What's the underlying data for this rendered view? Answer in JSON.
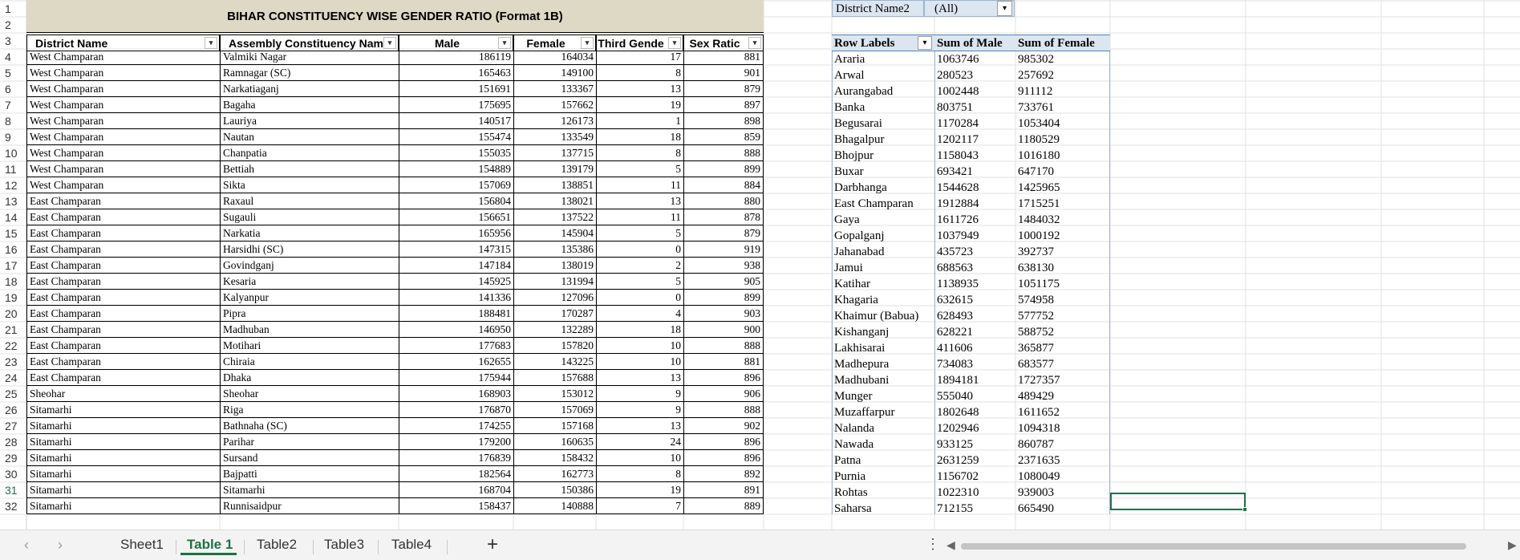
{
  "title": "BIHAR CONSTITUENCY WISE GENDER RATIO (Format 1B)",
  "headers": [
    "District Name",
    "Assembly Constituency Nam",
    "Male",
    "Female",
    "Third Gende",
    "Sex Ratic"
  ],
  "rows": [
    [
      "West Champaran",
      "Valmiki Nagar",
      "186119",
      "164034",
      "17",
      "881"
    ],
    [
      "West Champaran",
      "Ramnagar (SC)",
      "165463",
      "149100",
      "8",
      "901"
    ],
    [
      "West Champaran",
      "Narkatiaganj",
      "151691",
      "133367",
      "13",
      "879"
    ],
    [
      "West Champaran",
      "Bagaha",
      "175695",
      "157662",
      "19",
      "897"
    ],
    [
      "West Champaran",
      "Lauriya",
      "140517",
      "126173",
      "1",
      "898"
    ],
    [
      "West Champaran",
      "Nautan",
      "155474",
      "133549",
      "18",
      "859"
    ],
    [
      "West Champaran",
      "Chanpatia",
      "155035",
      "137715",
      "8",
      "888"
    ],
    [
      "West Champaran",
      "Bettiah",
      "154889",
      "139179",
      "5",
      "899"
    ],
    [
      "West Champaran",
      "Sikta",
      "157069",
      "138851",
      "11",
      "884"
    ],
    [
      "East Champaran",
      "Raxaul",
      "156804",
      "138021",
      "13",
      "880"
    ],
    [
      "East Champaran",
      "Sugauli",
      "156651",
      "137522",
      "11",
      "878"
    ],
    [
      "East Champaran",
      "Narkatia",
      "165956",
      "145904",
      "5",
      "879"
    ],
    [
      "East Champaran",
      "Harsidhi (SC)",
      "147315",
      "135386",
      "0",
      "919"
    ],
    [
      "East Champaran",
      "Govindganj",
      "147184",
      "138019",
      "2",
      "938"
    ],
    [
      "East Champaran",
      "Kesaria",
      "145925",
      "131994",
      "5",
      "905"
    ],
    [
      "East Champaran",
      "Kalyanpur",
      "141336",
      "127096",
      "0",
      "899"
    ],
    [
      "East Champaran",
      "Pipra",
      "188481",
      "170287",
      "4",
      "903"
    ],
    [
      "East Champaran",
      "Madhuban",
      "146950",
      "132289",
      "18",
      "900"
    ],
    [
      "East Champaran",
      "Motihari",
      "177683",
      "157820",
      "10",
      "888"
    ],
    [
      "East Champaran",
      "Chiraia",
      "162655",
      "143225",
      "10",
      "881"
    ],
    [
      "East Champaran",
      "Dhaka",
      "175944",
      "157688",
      "13",
      "896"
    ],
    [
      "Sheohar",
      "Sheohar",
      "168903",
      "153012",
      "9",
      "906"
    ],
    [
      "Sitamarhi",
      "Riga",
      "176870",
      "157069",
      "9",
      "888"
    ],
    [
      "Sitamarhi",
      "Bathnaha (SC)",
      "174255",
      "157168",
      "13",
      "902"
    ],
    [
      "Sitamarhi",
      "Parihar",
      "179200",
      "160635",
      "24",
      "896"
    ],
    [
      "Sitamarhi",
      "Sursand",
      "176839",
      "158432",
      "10",
      "896"
    ],
    [
      "Sitamarhi",
      "Bajpatti",
      "182564",
      "162773",
      "8",
      "892"
    ],
    [
      "Sitamarhi",
      "Sitamarhi",
      "168704",
      "150386",
      "19",
      "891"
    ],
    [
      "Sitamarhi",
      "Runnisaidpur",
      "158437",
      "140888",
      "7",
      "889"
    ]
  ],
  "row_numbers": [
    "1",
    "2",
    "3",
    "4",
    "5",
    "6",
    "7",
    "8",
    "9",
    "10",
    "11",
    "12",
    "13",
    "14",
    "15",
    "16",
    "17",
    "18",
    "19",
    "20",
    "21",
    "22",
    "23",
    "24",
    "25",
    "26",
    "27",
    "28",
    "29",
    "30",
    "31",
    "32"
  ],
  "pivot": {
    "filter_label": "District Name2",
    "filter_value": "(All)",
    "headers": [
      "Row Labels",
      "Sum of Male",
      "Sum of Female"
    ],
    "rows": [
      [
        "Araria",
        "1063746",
        "985302"
      ],
      [
        "Arwal",
        "280523",
        "257692"
      ],
      [
        "Aurangabad",
        "1002448",
        "911112"
      ],
      [
        "Banka",
        "803751",
        "733761"
      ],
      [
        "Begusarai",
        "1170284",
        "1053404"
      ],
      [
        "Bhagalpur",
        "1202117",
        "1180529"
      ],
      [
        "Bhojpur",
        "1158043",
        "1016180"
      ],
      [
        "Buxar",
        "693421",
        "647170"
      ],
      [
        "Darbhanga",
        "1544628",
        "1425965"
      ],
      [
        "East Champaran",
        "1912884",
        "1715251"
      ],
      [
        "Gaya",
        "1611726",
        "1484032"
      ],
      [
        "Gopalganj",
        "1037949",
        "1000192"
      ],
      [
        "Jahanabad",
        "435723",
        "392737"
      ],
      [
        "Jamui",
        "688563",
        "638130"
      ],
      [
        "Katihar",
        "1138935",
        "1051175"
      ],
      [
        "Khagaria",
        "632615",
        "574958"
      ],
      [
        "Khaimur (Babua)",
        "628493",
        "577752"
      ],
      [
        "Kishanganj",
        "628221",
        "588752"
      ],
      [
        "Lakhisarai",
        "411606",
        "365877"
      ],
      [
        "Madhepura",
        "734083",
        "683577"
      ],
      [
        "Madhubani",
        "1894181",
        "1727357"
      ],
      [
        "Munger",
        "555040",
        "489429"
      ],
      [
        "Muzaffarpur",
        "1802648",
        "1611652"
      ],
      [
        "Nalanda",
        "1202946",
        "1094318"
      ],
      [
        "Nawada",
        "933125",
        "860787"
      ],
      [
        "Patna",
        "2631259",
        "2371635"
      ],
      [
        "Purnia",
        "1156702",
        "1080049"
      ],
      [
        "Rohtas",
        "1022310",
        "939003"
      ],
      [
        "Saharsa",
        "712155",
        "665490"
      ]
    ]
  },
  "tabs": [
    "Sheet1",
    "Table 1",
    "Table2",
    "Table3",
    "Table4"
  ],
  "active_tab": "Table 1",
  "icons": {
    "nav_prev": "‹",
    "nav_next": "›",
    "add": "+",
    "more": "⋮",
    "scroll_left": "◀",
    "scroll_right": "▶",
    "dropdown": "▾"
  },
  "colors": {
    "title_band": "#ddd9c4",
    "pivot_header": "#dce6f1",
    "accent": "#1e7145"
  }
}
